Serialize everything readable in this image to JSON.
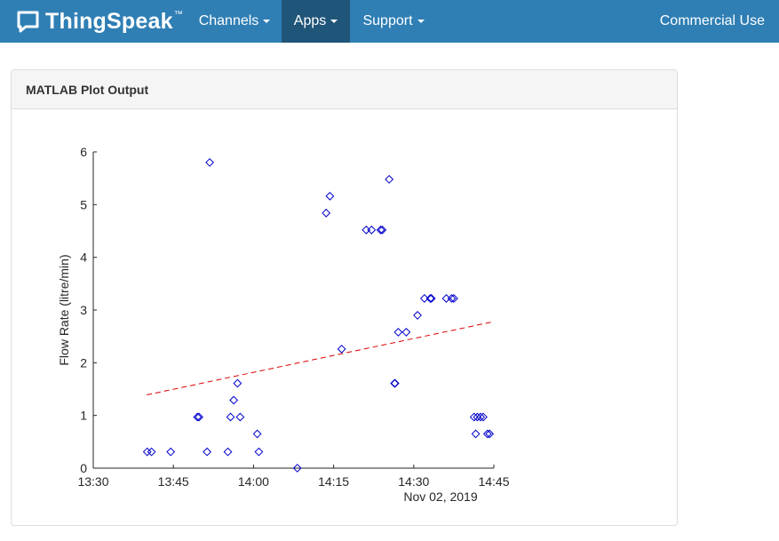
{
  "navbar": {
    "brand": "ThingSpeak",
    "trademark": "™",
    "items": [
      {
        "label": "Channels"
      },
      {
        "label": "Apps"
      },
      {
        "label": "Support"
      }
    ],
    "commercial_use": "Commercial Use",
    "bg_color": "#2f7fb4",
    "active_color": "#1f5579"
  },
  "panel": {
    "title": "MATLAB Plot Output"
  },
  "chart_data": {
    "type": "scatter",
    "ylabel": "Flow Rate (litre/min)",
    "xlabel": "Nov 02, 2019",
    "x_unit": "time (minutes since 13:30 on the x-axis scale)",
    "xlim": [
      0,
      75
    ],
    "ylim": [
      0,
      6
    ],
    "xticks": [
      0,
      15,
      30,
      45,
      60,
      75
    ],
    "xtick_labels": [
      "13:30",
      "13:45",
      "14:00",
      "14:15",
      "14:30",
      "14:45"
    ],
    "yticks": [
      0,
      1,
      2,
      3,
      4,
      5,
      6
    ],
    "ytick_labels": [
      "0",
      "1",
      "2",
      "3",
      "4",
      "5",
      "6"
    ],
    "grid": false,
    "legend": "none",
    "marker_color": "#0000cc",
    "trend_color": "#dd0000",
    "points": [
      [
        10.1,
        0.31
      ],
      [
        10.9,
        0.31
      ],
      [
        14.5,
        0.31
      ],
      [
        19.5,
        0.97
      ],
      [
        19.8,
        0.97
      ],
      [
        21.3,
        0.31
      ],
      [
        21.8,
        5.8
      ],
      [
        25.2,
        0.31
      ],
      [
        25.7,
        0.97
      ],
      [
        26.3,
        1.29
      ],
      [
        27.0,
        1.61
      ],
      [
        27.5,
        0.97
      ],
      [
        30.7,
        0.65
      ],
      [
        31.0,
        0.31
      ],
      [
        38.2,
        0.0
      ],
      [
        43.6,
        4.84
      ],
      [
        44.3,
        5.16
      ],
      [
        46.5,
        2.26
      ],
      [
        51.1,
        4.52
      ],
      [
        52.1,
        4.52
      ],
      [
        53.8,
        4.52
      ],
      [
        54.1,
        4.52
      ],
      [
        55.4,
        5.48
      ],
      [
        56.4,
        1.61
      ],
      [
        56.5,
        1.61
      ],
      [
        57.1,
        2.58
      ],
      [
        58.6,
        2.58
      ],
      [
        60.7,
        2.9
      ],
      [
        62.0,
        3.22
      ],
      [
        63.1,
        3.22
      ],
      [
        63.3,
        3.22
      ],
      [
        66.1,
        3.22
      ],
      [
        67.1,
        3.22
      ],
      [
        67.5,
        3.22
      ],
      [
        71.3,
        0.97
      ],
      [
        71.6,
        0.65
      ],
      [
        71.9,
        0.97
      ],
      [
        72.5,
        0.97
      ],
      [
        73.0,
        0.97
      ],
      [
        73.8,
        0.65
      ],
      [
        74.2,
        0.65
      ]
    ],
    "trend": {
      "x": [
        10,
        74.5
      ],
      "y": [
        1.39,
        2.77
      ]
    }
  }
}
